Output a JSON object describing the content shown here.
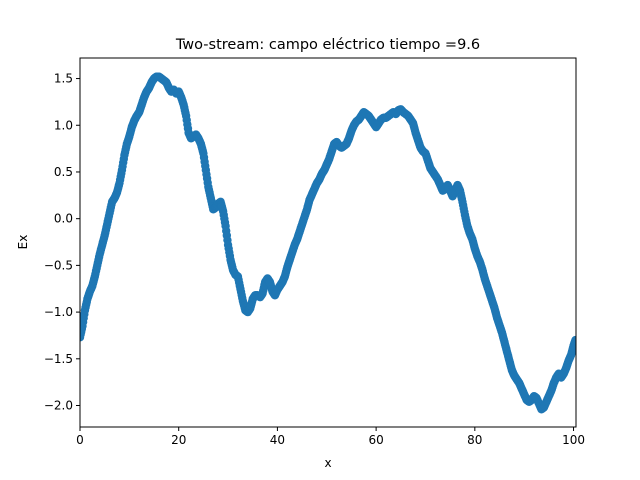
{
  "chart_data": {
    "type": "scatter",
    "title": "Two-stream: campo eléctrico  tiempo =9.6",
    "xlabel": "x",
    "ylabel": "Ex",
    "xlim": [
      0,
      100.5
    ],
    "ylim": [
      -2.23,
      1.72
    ],
    "xticks": [
      0,
      20,
      40,
      60,
      80,
      100
    ],
    "yticks": [
      -2.0,
      -1.5,
      -1.0,
      -0.5,
      0.0,
      0.5,
      1.0,
      1.5
    ],
    "ytick_labels": [
      "−2.0",
      "−1.5",
      "−1.0",
      "−0.5",
      "0.0",
      "0.5",
      "1.0",
      "1.5"
    ],
    "grid": false,
    "marker_color": "#1f77b4",
    "points": [
      [
        0.0,
        -1.27
      ],
      [
        0.5,
        -1.15
      ],
      [
        1.0,
        -0.98
      ],
      [
        1.5,
        -0.86
      ],
      [
        2.0,
        -0.78
      ],
      [
        2.5,
        -0.72
      ],
      [
        3.0,
        -0.62
      ],
      [
        3.5,
        -0.5
      ],
      [
        4.0,
        -0.38
      ],
      [
        4.5,
        -0.28
      ],
      [
        5.0,
        -0.18
      ],
      [
        5.5,
        -0.06
      ],
      [
        6.0,
        0.06
      ],
      [
        6.5,
        0.18
      ],
      [
        7.0,
        0.22
      ],
      [
        7.5,
        0.28
      ],
      [
        8.0,
        0.38
      ],
      [
        8.5,
        0.52
      ],
      [
        9.0,
        0.68
      ],
      [
        9.5,
        0.8
      ],
      [
        10.0,
        0.88
      ],
      [
        10.5,
        0.98
      ],
      [
        11.0,
        1.05
      ],
      [
        11.5,
        1.1
      ],
      [
        12.0,
        1.14
      ],
      [
        12.5,
        1.22
      ],
      [
        13.0,
        1.3
      ],
      [
        13.5,
        1.36
      ],
      [
        14.0,
        1.4
      ],
      [
        14.5,
        1.46
      ],
      [
        15.0,
        1.5
      ],
      [
        15.5,
        1.52
      ],
      [
        16.0,
        1.52
      ],
      [
        16.5,
        1.5
      ],
      [
        17.0,
        1.48
      ],
      [
        17.5,
        1.46
      ],
      [
        18.0,
        1.4
      ],
      [
        18.5,
        1.36
      ],
      [
        19.0,
        1.38
      ],
      [
        19.5,
        1.34
      ],
      [
        20.0,
        1.36
      ],
      [
        20.5,
        1.3
      ],
      [
        21.0,
        1.22
      ],
      [
        21.5,
        1.1
      ],
      [
        22.0,
        0.92
      ],
      [
        22.5,
        0.86
      ],
      [
        23.0,
        0.88
      ],
      [
        23.5,
        0.9
      ],
      [
        24.0,
        0.86
      ],
      [
        24.5,
        0.8
      ],
      [
        25.0,
        0.7
      ],
      [
        25.5,
        0.52
      ],
      [
        26.0,
        0.34
      ],
      [
        26.5,
        0.22
      ],
      [
        27.0,
        0.1
      ],
      [
        27.5,
        0.12
      ],
      [
        28.0,
        0.16
      ],
      [
        28.5,
        0.18
      ],
      [
        29.0,
        0.08
      ],
      [
        29.5,
        -0.08
      ],
      [
        30.0,
        -0.28
      ],
      [
        30.5,
        -0.44
      ],
      [
        31.0,
        -0.55
      ],
      [
        31.5,
        -0.6
      ],
      [
        32.0,
        -0.62
      ],
      [
        32.5,
        -0.75
      ],
      [
        33.0,
        -0.88
      ],
      [
        33.5,
        -0.98
      ],
      [
        34.0,
        -1.0
      ],
      [
        34.5,
        -0.96
      ],
      [
        35.0,
        -0.86
      ],
      [
        35.5,
        -0.82
      ],
      [
        36.0,
        -0.82
      ],
      [
        36.5,
        -0.84
      ],
      [
        37.0,
        -0.8
      ],
      [
        37.5,
        -0.68
      ],
      [
        38.0,
        -0.64
      ],
      [
        38.5,
        -0.68
      ],
      [
        39.0,
        -0.78
      ],
      [
        39.5,
        -0.82
      ],
      [
        40.0,
        -0.76
      ],
      [
        40.5,
        -0.72
      ],
      [
        41.0,
        -0.68
      ],
      [
        41.5,
        -0.62
      ],
      [
        42.0,
        -0.52
      ],
      [
        42.5,
        -0.44
      ],
      [
        43.0,
        -0.36
      ],
      [
        43.5,
        -0.28
      ],
      [
        44.0,
        -0.22
      ],
      [
        44.5,
        -0.14
      ],
      [
        45.0,
        -0.06
      ],
      [
        45.5,
        0.02
      ],
      [
        46.0,
        0.1
      ],
      [
        46.5,
        0.2
      ],
      [
        47.0,
        0.26
      ],
      [
        47.5,
        0.32
      ],
      [
        48.0,
        0.38
      ],
      [
        48.5,
        0.42
      ],
      [
        49.0,
        0.48
      ],
      [
        49.5,
        0.52
      ],
      [
        50.0,
        0.58
      ],
      [
        50.5,
        0.64
      ],
      [
        51.0,
        0.72
      ],
      [
        51.5,
        0.8
      ],
      [
        52.0,
        0.82
      ],
      [
        52.5,
        0.78
      ],
      [
        53.0,
        0.76
      ],
      [
        53.5,
        0.78
      ],
      [
        54.0,
        0.8
      ],
      [
        54.5,
        0.86
      ],
      [
        55.0,
        0.94
      ],
      [
        55.5,
        1.0
      ],
      [
        56.0,
        1.04
      ],
      [
        56.5,
        1.06
      ],
      [
        57.0,
        1.1
      ],
      [
        57.5,
        1.14
      ],
      [
        58.0,
        1.12
      ],
      [
        58.5,
        1.1
      ],
      [
        59.0,
        1.06
      ],
      [
        59.5,
        1.02
      ],
      [
        60.0,
        0.98
      ],
      [
        60.5,
        1.02
      ],
      [
        61.0,
        1.06
      ],
      [
        61.5,
        1.08
      ],
      [
        62.0,
        1.08
      ],
      [
        62.5,
        1.1
      ],
      [
        63.0,
        1.12
      ],
      [
        63.5,
        1.14
      ],
      [
        64.0,
        1.12
      ],
      [
        64.5,
        1.16
      ],
      [
        65.0,
        1.17
      ],
      [
        65.5,
        1.14
      ],
      [
        66.0,
        1.12
      ],
      [
        66.5,
        1.1
      ],
      [
        67.0,
        1.06
      ],
      [
        67.5,
        1.02
      ],
      [
        68.0,
        0.92
      ],
      [
        68.5,
        0.84
      ],
      [
        69.0,
        0.76
      ],
      [
        69.5,
        0.72
      ],
      [
        70.0,
        0.7
      ],
      [
        70.5,
        0.62
      ],
      [
        71.0,
        0.54
      ],
      [
        71.5,
        0.5
      ],
      [
        72.0,
        0.46
      ],
      [
        72.5,
        0.42
      ],
      [
        73.0,
        0.36
      ],
      [
        73.5,
        0.3
      ],
      [
        74.0,
        0.32
      ],
      [
        74.5,
        0.36
      ],
      [
        75.0,
        0.3
      ],
      [
        75.5,
        0.24
      ],
      [
        76.0,
        0.3
      ],
      [
        76.5,
        0.36
      ],
      [
        77.0,
        0.3
      ],
      [
        77.5,
        0.18
      ],
      [
        78.0,
        0.04
      ],
      [
        78.5,
        -0.08
      ],
      [
        79.0,
        -0.16
      ],
      [
        79.5,
        -0.22
      ],
      [
        80.0,
        -0.32
      ],
      [
        80.5,
        -0.4
      ],
      [
        81.0,
        -0.46
      ],
      [
        81.5,
        -0.54
      ],
      [
        82.0,
        -0.64
      ],
      [
        82.5,
        -0.72
      ],
      [
        83.0,
        -0.8
      ],
      [
        83.5,
        -0.88
      ],
      [
        84.0,
        -0.96
      ],
      [
        84.5,
        -1.06
      ],
      [
        85.0,
        -1.14
      ],
      [
        85.5,
        -1.22
      ],
      [
        86.0,
        -1.32
      ],
      [
        86.5,
        -1.42
      ],
      [
        87.0,
        -1.52
      ],
      [
        87.5,
        -1.62
      ],
      [
        88.0,
        -1.68
      ],
      [
        88.5,
        -1.72
      ],
      [
        89.0,
        -1.76
      ],
      [
        89.5,
        -1.82
      ],
      [
        90.0,
        -1.88
      ],
      [
        90.5,
        -1.94
      ],
      [
        91.0,
        -1.96
      ],
      [
        91.5,
        -1.94
      ],
      [
        92.0,
        -1.9
      ],
      [
        92.5,
        -1.92
      ],
      [
        93.0,
        -1.98
      ],
      [
        93.5,
        -2.04
      ],
      [
        94.0,
        -2.02
      ],
      [
        94.5,
        -1.96
      ],
      [
        95.0,
        -1.9
      ],
      [
        95.5,
        -1.84
      ],
      [
        96.0,
        -1.76
      ],
      [
        96.5,
        -1.7
      ],
      [
        97.0,
        -1.66
      ],
      [
        97.5,
        -1.7
      ],
      [
        98.0,
        -1.66
      ],
      [
        98.5,
        -1.6
      ],
      [
        99.0,
        -1.52
      ],
      [
        99.5,
        -1.46
      ],
      [
        100.0,
        -1.36
      ],
      [
        100.4,
        -1.3
      ]
    ]
  }
}
